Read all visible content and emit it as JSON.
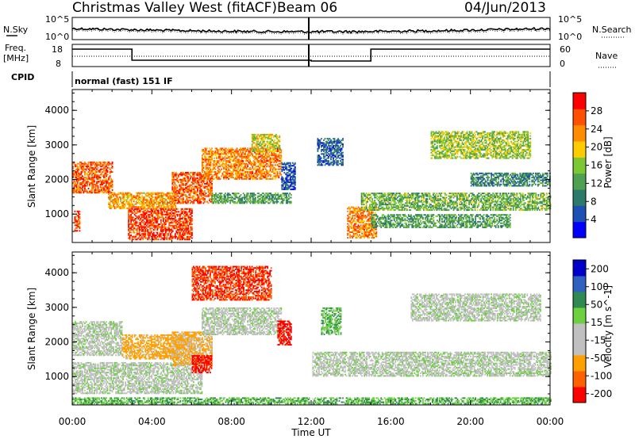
{
  "header": {
    "station": "Christmas Valley West (fitACF)",
    "beam": "Beam 06",
    "date": "04/Jun/2013"
  },
  "noise_panel": {
    "left_label": "N.Sky",
    "right_label": "N.Search",
    "left_ticks": [
      "10^5",
      "10^0"
    ],
    "right_ticks": [
      "10^5",
      "10^0"
    ]
  },
  "freq_panel": {
    "left_label_1": "Freq.",
    "left_label_2": "[MHz]",
    "right_label": "Nave",
    "left_ticks": [
      "18",
      "8"
    ],
    "right_ticks": [
      "60",
      "0"
    ]
  },
  "cpid": {
    "label": "CPID",
    "value": "normal (fast) 151 IF"
  },
  "x_axis": {
    "label": "Time UT",
    "ticks": [
      "00:00",
      "04:00",
      "08:00",
      "12:00",
      "16:00",
      "20:00",
      "00:00"
    ]
  },
  "colors": {
    "power_scale": [
      "#0000ff",
      "#1e4fb4",
      "#2e7a6a",
      "#4fa050",
      "#7dc832",
      "#ffcc00",
      "#ff8c00",
      "#ff5000",
      "#ff0000"
    ],
    "velocity_scale": [
      "#0000c8",
      "#3060c0",
      "#2e8a50",
      "#6cd040",
      "#c0c0c0",
      "#c0c0c0",
      "#ffa000",
      "#ff6000",
      "#ff0000"
    ]
  },
  "chart_data": [
    {
      "type": "heatmap",
      "panel": "power",
      "ylabel": "Slant Range [km]",
      "y_ticks": [
        1000,
        2000,
        3000,
        4000
      ],
      "ylim": [
        180,
        4600
      ],
      "xlim": [
        0,
        24
      ],
      "colorbar_label": "Power [dB]",
      "colorbar_ticks": [
        4,
        8,
        12,
        16,
        20,
        24,
        28
      ],
      "colorbar_range": [
        0,
        32
      ],
      "regions": [
        {
          "t0": 0.0,
          "t1": 2.0,
          "r0": 1600,
          "r1": 2500,
          "val": 26
        },
        {
          "t0": 0.1,
          "t1": 0.4,
          "r0": 500,
          "r1": 1100,
          "val": 27
        },
        {
          "t0": 1.8,
          "t1": 5.2,
          "r0": 1150,
          "r1": 1600,
          "val": 22
        },
        {
          "t0": 2.8,
          "t1": 6.0,
          "r0": 250,
          "r1": 1150,
          "val": 28
        },
        {
          "t0": 5.0,
          "t1": 7.0,
          "r0": 1300,
          "r1": 2200,
          "val": 26
        },
        {
          "t0": 6.5,
          "t1": 10.5,
          "r0": 2000,
          "r1": 2900,
          "val": 24
        },
        {
          "t0": 9.0,
          "t1": 10.4,
          "r0": 2800,
          "r1": 3300,
          "val": 18
        },
        {
          "t0": 7.0,
          "t1": 11.0,
          "r0": 1300,
          "r1": 1600,
          "val": 12
        },
        {
          "t0": 10.5,
          "t1": 11.2,
          "r0": 1700,
          "r1": 2500,
          "val": 6
        },
        {
          "t0": 12.3,
          "t1": 13.6,
          "r0": 2400,
          "r1": 3200,
          "val": 7
        },
        {
          "t0": 13.8,
          "t1": 15.3,
          "r0": 300,
          "r1": 1200,
          "val": 24
        },
        {
          "t0": 14.5,
          "t1": 24.0,
          "r0": 1100,
          "r1": 1600,
          "val": 14
        },
        {
          "t0": 15.0,
          "t1": 22.0,
          "r0": 600,
          "r1": 1000,
          "val": 12
        },
        {
          "t0": 18.0,
          "t1": 23.0,
          "r0": 2600,
          "r1": 3400,
          "val": 16
        },
        {
          "t0": 20.0,
          "t1": 24.0,
          "r0": 1800,
          "r1": 2200,
          "val": 10
        }
      ]
    },
    {
      "type": "heatmap",
      "panel": "velocity",
      "ylabel": "Slant Range [km]",
      "y_ticks": [
        1000,
        2000,
        3000,
        4000
      ],
      "ylim": [
        180,
        4600
      ],
      "xlim": [
        0,
        24
      ],
      "colorbar_label": "Velocity [m s^-1]",
      "colorbar_ticks": [
        200,
        100,
        50,
        15,
        -15,
        -50,
        -100,
        -200
      ],
      "colorbar_range": [
        -250,
        250
      ],
      "regions": [
        {
          "t0": 0.0,
          "t1": 2.5,
          "r0": 1600,
          "r1": 2600,
          "val": 0
        },
        {
          "t0": 0.0,
          "t1": 6.5,
          "r0": 500,
          "r1": 1400,
          "val": 0
        },
        {
          "t0": 2.5,
          "t1": 6.0,
          "r0": 1500,
          "r1": 2200,
          "val": -70
        },
        {
          "t0": 5.0,
          "t1": 7.0,
          "r0": 1300,
          "r1": 2300,
          "val": -60
        },
        {
          "t0": 6.5,
          "t1": 10.5,
          "r0": 2200,
          "r1": 3000,
          "val": 0
        },
        {
          "t0": 6.0,
          "t1": 10.0,
          "r0": 3200,
          "r1": 4200,
          "val": -200
        },
        {
          "t0": 10.3,
          "t1": 11.0,
          "r0": 1900,
          "r1": 2600,
          "val": -220
        },
        {
          "t0": 6.0,
          "t1": 7.0,
          "r0": 1100,
          "r1": 1600,
          "val": -220
        },
        {
          "t0": 12.5,
          "t1": 13.5,
          "r0": 2200,
          "r1": 3000,
          "val": 40
        },
        {
          "t0": 12.0,
          "t1": 24.0,
          "r0": 1000,
          "r1": 1700,
          "val": 0
        },
        {
          "t0": 17.0,
          "t1": 23.5,
          "r0": 2600,
          "r1": 3400,
          "val": 0
        },
        {
          "t0": 0.0,
          "t1": 24.0,
          "r0": 200,
          "r1": 400,
          "val": 45
        }
      ]
    }
  ]
}
